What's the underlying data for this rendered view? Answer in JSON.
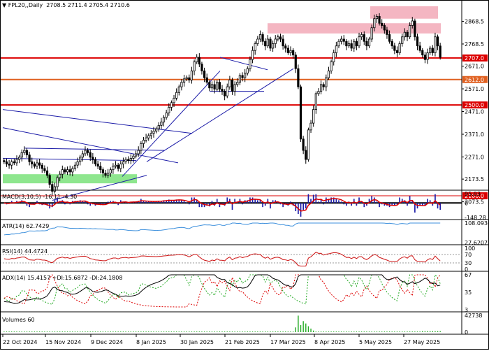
{
  "main": {
    "symbol": "FPL20",
    "timeframe": "Daily",
    "ohlc": "2708.5 2711.4 2705.4 2710.6",
    "price_axis_labels": [
      "2868.5",
      "2768.5",
      "2671.0",
      "2571.0",
      "2471.0",
      "2371.0",
      "2271.0",
      "2173.5",
      "2073.5"
    ],
    "level_labels": [
      "2707.0",
      "2612.0",
      "2500.0",
      "2100.0"
    ],
    "colors": {
      "up": "#ffffff",
      "down": "#000000",
      "level": "#dd0000",
      "trend": "#1c1ca8",
      "zone_pink": "#f4b6c2",
      "zone_green": "#8ee68e"
    }
  },
  "chart_data": [
    {
      "type": "candlestick",
      "title": "FPL20,,Daily",
      "last_ohlc": {
        "open": 2708.5,
        "high": 2711.4,
        "low": 2705.4,
        "close": 2710.6
      },
      "ylim": [
        2060,
        2950
      ],
      "yticks": [
        2868.5,
        2768.5,
        2671.0,
        2571.0,
        2471.0,
        2371.0,
        2271.0,
        2173.5,
        2073.5
      ],
      "horizontal_levels": [
        2707.0,
        2612.0,
        2500.0,
        2100.0
      ],
      "support_zone": [
        2155,
        2195
      ],
      "resistance_zones": [
        [
          2815,
          2860
        ],
        [
          2880,
          2935
        ]
      ],
      "closes": [
        2250,
        2240,
        2235,
        2250,
        2245,
        2260,
        2270,
        2290,
        2300,
        2280,
        2250,
        2240,
        2230,
        2245,
        2235,
        2220,
        2210,
        2190,
        2150,
        2120,
        2140,
        2180,
        2195,
        2215,
        2205,
        2215,
        2205,
        2220,
        2235,
        2250,
        2270,
        2285,
        2300,
        2290,
        2270,
        2260,
        2240,
        2230,
        2215,
        2200,
        2190,
        2200,
        2215,
        2230,
        2235,
        2220,
        2240,
        2250,
        2260,
        2255,
        2265,
        2275,
        2285,
        2300,
        2330,
        2345,
        2355,
        2365,
        2375,
        2385,
        2395,
        2410,
        2425,
        2445,
        2465,
        2490,
        2510,
        2530,
        2555,
        2580,
        2600,
        2615,
        2620,
        2610,
        2650,
        2690,
        2710,
        2680,
        2650,
        2620,
        2600,
        2575,
        2590,
        2570,
        2600,
        2570,
        2560,
        2540,
        2580,
        2610,
        2560,
        2590,
        2600,
        2630,
        2620,
        2640,
        2660,
        2700,
        2740,
        2770,
        2790,
        2810,
        2780,
        2760,
        2790,
        2750,
        2770,
        2790,
        2800,
        2790,
        2760,
        2750,
        2730,
        2740,
        2720,
        2660,
        2580,
        2350,
        2300,
        2260,
        2390,
        2420,
        2480,
        2550,
        2560,
        2590,
        2580,
        2620,
        2650,
        2690,
        2730,
        2760,
        2780,
        2790,
        2780,
        2760,
        2770,
        2750,
        2780,
        2760,
        2800,
        2810,
        2780,
        2760,
        2790,
        2840,
        2880,
        2890,
        2860,
        2850,
        2830,
        2810,
        2780,
        2760,
        2740,
        2730,
        2770,
        2800,
        2820,
        2800,
        2850,
        2870,
        2800,
        2760,
        2740,
        2720,
        2700,
        2730,
        2750,
        2730,
        2800,
        2760,
        2710
      ],
      "x_tick_labels": [
        "22 Oct 2024",
        "15 Nov 2024",
        "9 Dec 2024",
        "8 Jan 2025",
        "30 Jan 2025",
        "21 Feb 2025",
        "17 Mar 2025",
        "8 Apr 2025",
        "5 May 2025",
        "27 May 2025"
      ]
    },
    {
      "type": "line",
      "title": "MACD(3,10,5)",
      "values_text": [
        "-16.11",
        "-4.30"
      ],
      "yticks": [
        95.03,
        0,
        -148.28
      ],
      "colors": {
        "histogram": "#1c1ca8",
        "signal": "#dd0000"
      }
    },
    {
      "type": "line",
      "title": "ATR(14)",
      "value": 62.7429,
      "yticks": [
        108.0936,
        27.6207
      ],
      "color": "#3c8fdc"
    },
    {
      "type": "line",
      "title": "RSI(14)",
      "value": 44.4724,
      "yticks": [
        100,
        70,
        30,
        0
      ],
      "color": "#cc1111"
    },
    {
      "type": "line",
      "title": "ADX(14)",
      "values_text": [
        "15.4157",
        "+DI:15.6872",
        "-DI:24.1808"
      ],
      "yticks": [
        67,
        35,
        3
      ],
      "colors": {
        "adx": "#000000",
        "plus_di": "#22aa22",
        "minus_di": "#dd0000"
      }
    },
    {
      "type": "bar",
      "title": "Volumes",
      "value": 60,
      "yticks": [
        42738,
        0
      ],
      "color": "#22aa22"
    }
  ]
}
